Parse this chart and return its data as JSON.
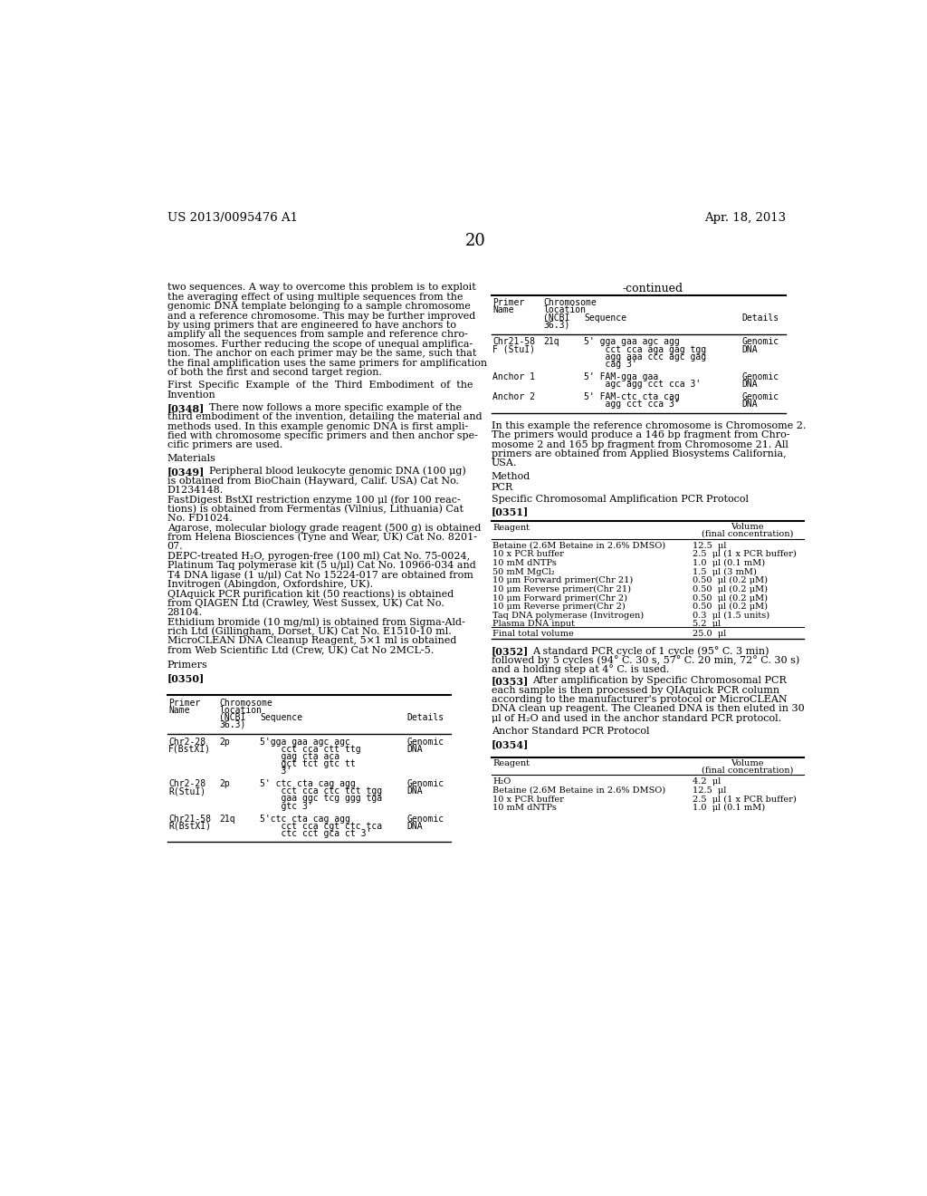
{
  "page_num": "20",
  "header_left": "US 2013/0095476 A1",
  "header_right": "Apr. 18, 2013",
  "bg_color": "#ffffff"
}
